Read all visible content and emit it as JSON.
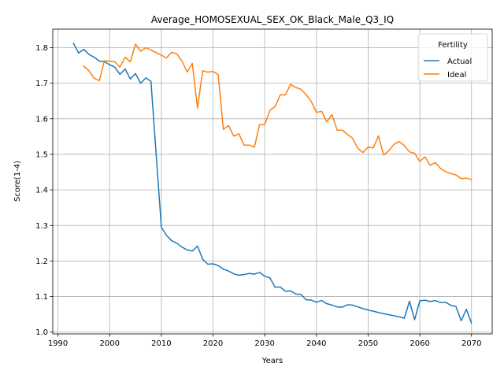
{
  "chart_data": {
    "type": "line",
    "title": "Average_HOMOSEXUAL_SEX_OK_Black_Male_Q3_IQ",
    "xlabel": "Years",
    "ylabel": "Score(1-4)",
    "xlim": [
      1989,
      2074
    ],
    "ylim": [
      0.995,
      1.852
    ],
    "x_ticks": [
      1990,
      2000,
      2010,
      2020,
      2030,
      2040,
      2050,
      2060,
      2070
    ],
    "y_ticks": [
      1.0,
      1.1,
      1.2,
      1.3,
      1.4,
      1.5,
      1.6,
      1.7,
      1.8
    ],
    "grid": true,
    "legend": {
      "title": "Fertility",
      "position": "top-right"
    },
    "series": [
      {
        "name": "Actual",
        "color": "#1f77b4",
        "x": [
          1993,
          1994,
          1995,
          1996,
          1997,
          1998,
          1999,
          2000,
          2001,
          2002,
          2003,
          2004,
          2005,
          2006,
          2007,
          2008,
          2009,
          2010,
          2011,
          2012,
          2013,
          2014,
          2015,
          2016,
          2017,
          2018,
          2019,
          2020,
          2021,
          2022,
          2023,
          2024,
          2025,
          2026,
          2027,
          2028,
          2029,
          2030,
          2031,
          2032,
          2033,
          2034,
          2035,
          2036,
          2037,
          2038,
          2039,
          2040,
          2041,
          2042,
          2043,
          2044,
          2045,
          2046,
          2047,
          2048,
          2049,
          2050,
          2051,
          2052,
          2053,
          2054,
          2055,
          2056,
          2057,
          2058,
          2059,
          2060,
          2061,
          2062,
          2063,
          2064,
          2065,
          2066,
          2067,
          2068,
          2069,
          2070
        ],
        "values": [
          1.812,
          1.785,
          1.795,
          1.781,
          1.773,
          1.762,
          1.761,
          1.752,
          1.745,
          1.725,
          1.74,
          1.712,
          1.727,
          1.7,
          1.715,
          1.705,
          1.5,
          1.295,
          1.272,
          1.257,
          1.25,
          1.239,
          1.231,
          1.228,
          1.242,
          1.205,
          1.191,
          1.192,
          1.187,
          1.177,
          1.172,
          1.164,
          1.16,
          1.162,
          1.165,
          1.163,
          1.168,
          1.157,
          1.153,
          1.126,
          1.127,
          1.115,
          1.116,
          1.107,
          1.106,
          1.091,
          1.09,
          1.084,
          1.089,
          1.08,
          1.076,
          1.071,
          1.07,
          1.077,
          1.076,
          1.071,
          1.066,
          1.062,
          1.059,
          1.055,
          1.052,
          1.049,
          1.046,
          1.043,
          1.039,
          1.087,
          1.035,
          1.088,
          1.09,
          1.086,
          1.089,
          1.083,
          1.084,
          1.075,
          1.072,
          1.032,
          1.064,
          1.026
        ]
      },
      {
        "name": "Ideal",
        "color": "#ff7f0e",
        "x": [
          1995,
          1996,
          1997,
          1998,
          1999,
          2000,
          2001,
          2002,
          2003,
          2004,
          2005,
          2006,
          2007,
          2008,
          2009,
          2010,
          2011,
          2012,
          2013,
          2014,
          2015,
          2016,
          2017,
          2018,
          2019,
          2020,
          2021,
          2022,
          2023,
          2024,
          2025,
          2026,
          2027,
          2028,
          2029,
          2030,
          2031,
          2032,
          2033,
          2034,
          2035,
          2036,
          2037,
          2038,
          2039,
          2040,
          2041,
          2042,
          2043,
          2044,
          2045,
          2046,
          2047,
          2048,
          2049,
          2050,
          2051,
          2052,
          2053,
          2054,
          2055,
          2056,
          2057,
          2058,
          2059,
          2060,
          2061,
          2062,
          2063,
          2064,
          2065,
          2066,
          2067,
          2068,
          2069,
          2070
        ],
        "values": [
          1.748,
          1.735,
          1.714,
          1.707,
          1.763,
          1.762,
          1.76,
          1.745,
          1.773,
          1.76,
          1.81,
          1.79,
          1.8,
          1.793,
          1.786,
          1.779,
          1.771,
          1.787,
          1.782,
          1.762,
          1.731,
          1.756,
          1.63,
          1.735,
          1.731,
          1.733,
          1.724,
          1.57,
          1.581,
          1.551,
          1.558,
          1.526,
          1.526,
          1.52,
          1.583,
          1.584,
          1.624,
          1.634,
          1.667,
          1.667,
          1.697,
          1.688,
          1.683,
          1.668,
          1.649,
          1.618,
          1.621,
          1.591,
          1.612,
          1.568,
          1.568,
          1.556,
          1.545,
          1.517,
          1.505,
          1.52,
          1.518,
          1.552,
          1.498,
          1.51,
          1.528,
          1.536,
          1.525,
          1.507,
          1.503,
          1.48,
          1.493,
          1.469,
          1.477,
          1.46,
          1.451,
          1.446,
          1.442,
          1.432,
          1.433,
          1.429
        ]
      }
    ]
  }
}
